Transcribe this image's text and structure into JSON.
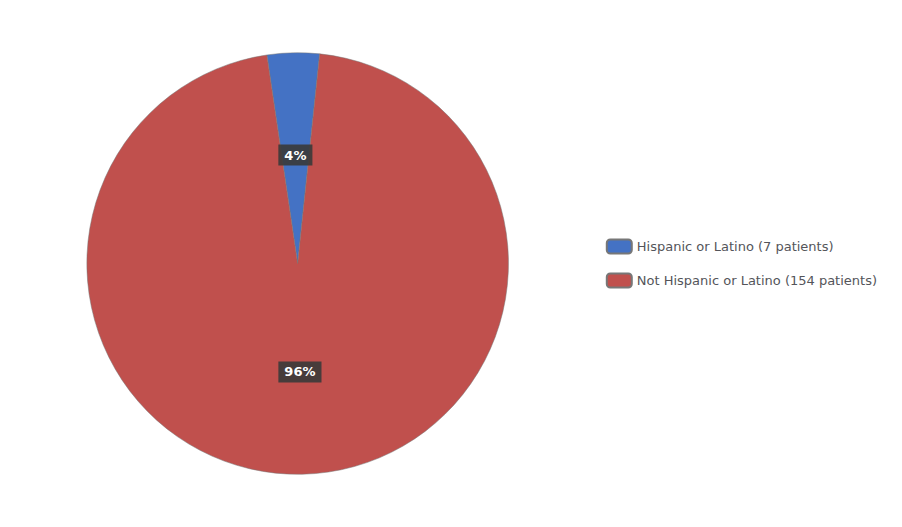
{
  "chart_data": {
    "type": "pie",
    "categories": [
      "Hispanic or Latino (7 patients)",
      "Not Hispanic or Latino (154 patients)"
    ],
    "values": [
      4,
      96
    ],
    "value_labels": [
      "4%",
      "96%"
    ],
    "colors": [
      "#4472C4",
      "#C0504D"
    ],
    "data_labels": true,
    "legend": "right"
  }
}
